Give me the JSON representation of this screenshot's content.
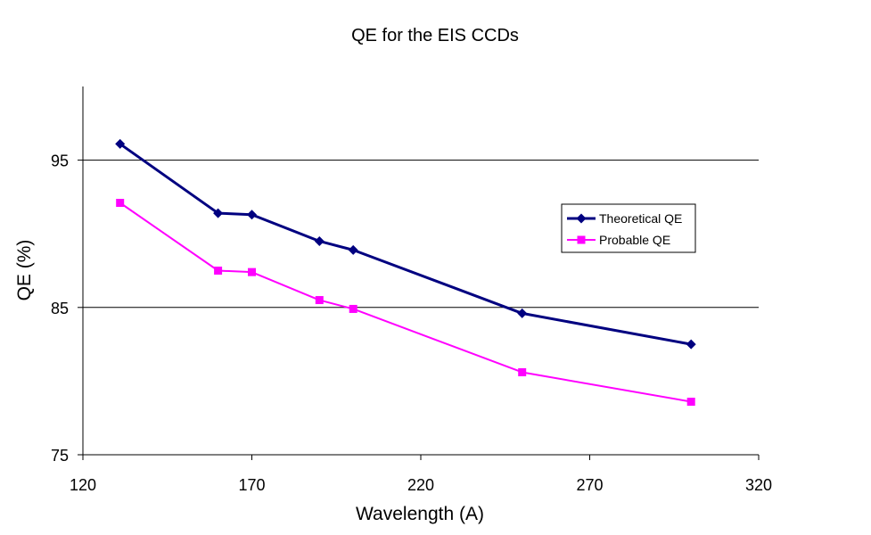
{
  "chart_data": {
    "type": "line",
    "title": "QE for the EIS CCDs",
    "xlabel": "Wavelength (A)",
    "ylabel": "QE (%)",
    "xlim": [
      120,
      320
    ],
    "ylim": [
      75,
      100
    ],
    "x_ticks": [
      120,
      170,
      220,
      270,
      320
    ],
    "y_ticks": [
      75,
      85,
      95
    ],
    "gridlines_y": [
      85,
      95
    ],
    "grid": "horizontal major",
    "legend_position": "right",
    "series": [
      {
        "name": "Theoretical QE",
        "color": "#000080",
        "marker": "diamond",
        "x": [
          131,
          160,
          170,
          190,
          200,
          250,
          300
        ],
        "y": [
          96.1,
          91.4,
          91.3,
          89.5,
          88.9,
          84.6,
          82.5
        ]
      },
      {
        "name": "Probable QE",
        "color": "#ff00ff",
        "marker": "square",
        "x": [
          131,
          160,
          170,
          190,
          200,
          250,
          300
        ],
        "y": [
          92.1,
          87.5,
          87.4,
          85.5,
          84.9,
          80.6,
          78.6
        ]
      }
    ]
  }
}
